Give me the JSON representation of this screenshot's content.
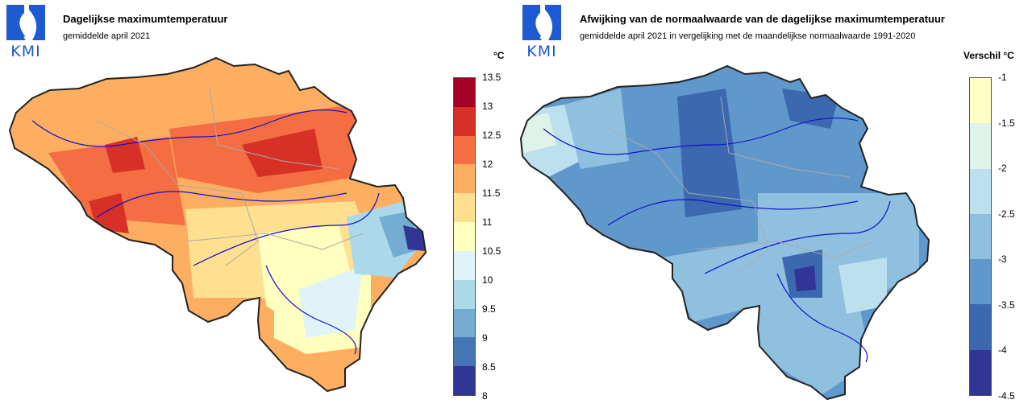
{
  "left": {
    "logo_text": "KMI",
    "title": "Dagelijkse maximumtemperatuur",
    "subtitle": "gemiddelde april 2021",
    "legend": {
      "unit": "°C",
      "ticks": [
        "13.5",
        "13",
        "12.5",
        "12",
        "11.5",
        "11",
        "10.5",
        "10",
        "9.5",
        "9",
        "8.5",
        "8"
      ],
      "colors": [
        "#a50026",
        "#d73027",
        "#f46d43",
        "#fdae61",
        "#fee090",
        "#ffffbf",
        "#e0f3f8",
        "#abd9e9",
        "#74add1",
        "#4575b4",
        "#313695"
      ]
    }
  },
  "right": {
    "logo_text": "KMI",
    "title": "Afwijking van de normaalwaarde van de dagelijkse maximumtemperatuur",
    "subtitle": "gemiddelde april 2021 in vergelijking met de maandelijkse normaalwaarde 1991-2020",
    "legend": {
      "unit": "Verschil °C",
      "ticks": [
        "-1",
        "-1.5",
        "-2",
        "-2.5",
        "-3",
        "-3.5",
        "-4",
        "-4.5"
      ],
      "colors": [
        "#ffffc8",
        "#e0f3ea",
        "#bce0ee",
        "#90c0df",
        "#6098cc",
        "#3c68b0",
        "#313695"
      ]
    }
  }
}
